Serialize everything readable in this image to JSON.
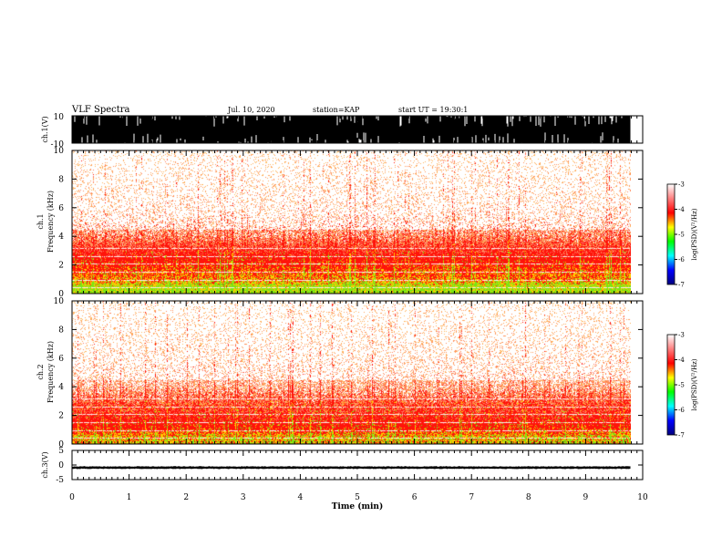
{
  "header": {
    "title": "VLF Spectra",
    "date": "Jul. 10, 2020",
    "station": "station=KAP",
    "start": "start UT =  19:30:1"
  },
  "colorbar": {
    "label": "log(PSD)(V²/Hz)",
    "ticks": [
      "-3",
      "-4",
      "-5",
      "-6",
      "-7"
    ]
  },
  "chart_data": [
    {
      "type": "line",
      "name": "ch1-waveform",
      "ylabel": "ch.1(V)",
      "ylim": [
        -10,
        10
      ],
      "y_ticks": [
        "10",
        "-10"
      ],
      "xlim": [
        0,
        10
      ],
      "note_values": "dense broadband waveform saturating near ±10 V"
    },
    {
      "type": "heatmap",
      "name": "ch1-spectrogram",
      "ylabel": "ch.1\nFrequency (kHz)",
      "ylim": [
        0,
        10
      ],
      "y_ticks": [
        "0",
        "2",
        "4",
        "6",
        "8",
        "10"
      ],
      "xlim": [
        0,
        9.85
      ],
      "colorscale": [
        "#000080",
        "#0000ff",
        "#00ff00",
        "#ffff00",
        "#ff0000",
        "#ffffff"
      ],
      "band_profile_khz": [
        [
          0.5,
          -3.6
        ],
        [
          1.0,
          -3.9
        ],
        [
          1.5,
          -4.0
        ],
        [
          2.0,
          -4.1
        ],
        [
          2.5,
          -4.2
        ],
        [
          3.0,
          -4.35
        ],
        [
          4.0,
          -4.6
        ],
        [
          6.0,
          -4.8
        ],
        [
          10.0,
          -4.9
        ]
      ]
    },
    {
      "type": "heatmap",
      "name": "ch2-spectrogram",
      "ylabel": "ch.2\nFrequency (kHz)",
      "ylim": [
        0,
        10
      ],
      "y_ticks": [
        "0",
        "2",
        "4",
        "6",
        "8",
        "10"
      ],
      "xlim": [
        0,
        9.85
      ],
      "colorscale": [
        "#000080",
        "#0000ff",
        "#00ff00",
        "#ffff00",
        "#ff0000",
        "#ffffff"
      ],
      "band_profile_khz": [
        [
          0.5,
          -3.8
        ],
        [
          1.0,
          -4.1
        ],
        [
          1.5,
          -4.2
        ],
        [
          2.0,
          -4.3
        ],
        [
          3.0,
          -4.5
        ],
        [
          4.0,
          -4.7
        ],
        [
          6.0,
          -4.8
        ],
        [
          10.0,
          -4.9
        ]
      ]
    },
    {
      "type": "line",
      "name": "ch3-waveform",
      "ylabel": "ch.3(V)",
      "ylim": [
        -5,
        5
      ],
      "y_ticks": [
        "5",
        "0",
        "-5"
      ],
      "xlim": [
        0,
        10
      ],
      "note_values": "near-constant band between about -1.3 V and -0.5 V"
    }
  ],
  "x_axis": {
    "label": "Time (min)",
    "ticks": [
      "0",
      "1",
      "2",
      "3",
      "4",
      "5",
      "6",
      "7",
      "8",
      "9",
      "10"
    ],
    "range": [
      0,
      10
    ]
  }
}
